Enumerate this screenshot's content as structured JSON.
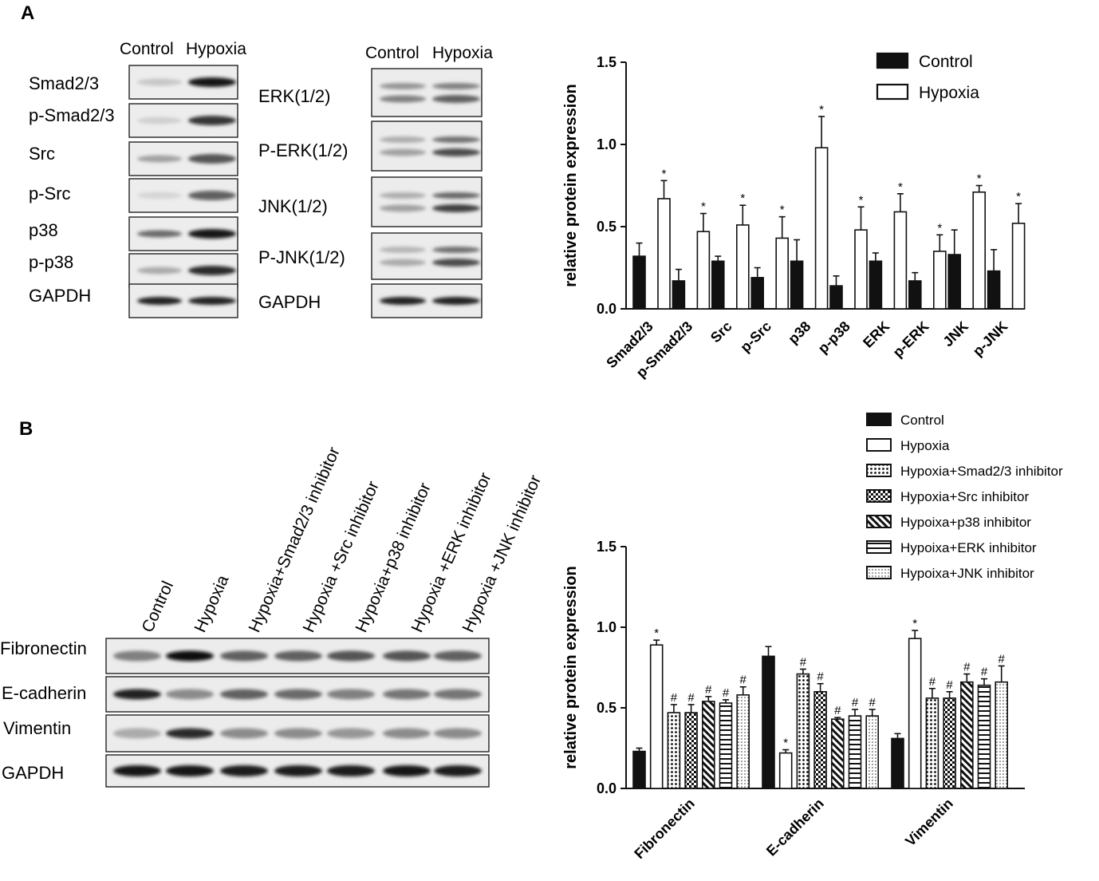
{
  "panel_a": {
    "letter": "A",
    "blot_left": {
      "columns": [
        "Control",
        "Hypoxia"
      ],
      "rows": [
        {
          "label": "Smad2/3",
          "control": 0.12,
          "hypoxia": 0.95,
          "bands": 1
        },
        {
          "label": "p-Smad2/3",
          "control": 0.08,
          "hypoxia": 0.8,
          "bands": 1
        },
        {
          "label": "Src",
          "control": 0.3,
          "hypoxia": 0.65,
          "bands": 1
        },
        {
          "label": "p-Src",
          "control": 0.05,
          "hypoxia": 0.6,
          "bands": 1
        },
        {
          "label": "p38",
          "control": 0.55,
          "hypoxia": 0.95,
          "bands": 1
        },
        {
          "label": "p-p38",
          "control": 0.25,
          "hypoxia": 0.85,
          "bands": 1
        },
        {
          "label": "GAPDH",
          "control": 0.9,
          "hypoxia": 0.9,
          "bands": 1
        }
      ]
    },
    "blot_right": {
      "columns": [
        "Control",
        "Hypoxia"
      ],
      "rows": [
        {
          "label": "ERK(1/2)",
          "control": 0.45,
          "hypoxia": 0.6,
          "bands": 2
        },
        {
          "label": "P-ERK(1/2)",
          "control": 0.3,
          "hypoxia": 0.7,
          "bands": 2
        },
        {
          "label": "JNK(1/2)",
          "control": 0.3,
          "hypoxia": 0.75,
          "bands": 2
        },
        {
          "label": "P-JNK(1/2)",
          "control": 0.25,
          "hypoxia": 0.7,
          "bands": 2
        },
        {
          "label": "GAPDH",
          "control": 0.9,
          "hypoxia": 0.9,
          "bands": 1
        }
      ]
    }
  },
  "panel_b": {
    "letter": "B",
    "blot": {
      "columns": [
        "Control",
        "Hypoxia",
        "Hypoxia+Smad2/3 inhibitor",
        "Hypoxia +Src inhibitor",
        "Hypoxia+p38 inhibitor",
        "Hypoxia +ERK inhibitor",
        "Hypoxia +JNK inhibitor"
      ],
      "rows": [
        {
          "label": "Fibronectin",
          "intensities": [
            0.45,
            0.98,
            0.6,
            0.6,
            0.65,
            0.65,
            0.6
          ]
        },
        {
          "label": "E-cadherin",
          "intensities": [
            0.9,
            0.4,
            0.6,
            0.55,
            0.45,
            0.5,
            0.5
          ]
        },
        {
          "label": "Vimentin",
          "intensities": [
            0.25,
            0.85,
            0.4,
            0.4,
            0.35,
            0.4,
            0.4
          ]
        },
        {
          "label": "GAPDH",
          "intensities": [
            0.95,
            0.95,
            0.92,
            0.92,
            0.92,
            0.95,
            0.92
          ]
        }
      ]
    }
  },
  "chart_data": [
    {
      "type": "bar",
      "title": "",
      "xlabel": "",
      "ylabel": "relative protein expression",
      "ylim": [
        0,
        1.5
      ],
      "yticks": [
        "0.0",
        "0.5",
        "1.0",
        "1.5"
      ],
      "categories": [
        "Smad2/3",
        "p-Smad2/3",
        "Src",
        "p-Src",
        "p38",
        "p-p38",
        "ERK",
        "p-ERK",
        "JNK",
        "p-JNK"
      ],
      "series": [
        {
          "name": "Control",
          "fill": "solid",
          "values": [
            0.32,
            0.17,
            0.29,
            0.19,
            0.29,
            0.14,
            0.29,
            0.17,
            0.33,
            0.23
          ],
          "errors": [
            0.08,
            0.07,
            0.03,
            0.06,
            0.13,
            0.06,
            0.05,
            0.05,
            0.15,
            0.13
          ]
        },
        {
          "name": "Hypoxia",
          "fill": "hollow",
          "values": [
            0.67,
            0.47,
            0.51,
            0.43,
            0.98,
            0.48,
            0.59,
            0.35,
            0.71,
            0.52
          ],
          "errors": [
            0.11,
            0.11,
            0.12,
            0.13,
            0.19,
            0.14,
            0.11,
            0.1,
            0.04,
            0.12
          ],
          "markers": [
            "*",
            "*",
            "*",
            "*",
            "*",
            "*",
            "*",
            "*",
            "*",
            "*"
          ]
        }
      ],
      "legend": "top-right"
    },
    {
      "type": "bar",
      "title": "",
      "xlabel": "",
      "ylabel": "relative protein expression",
      "ylim": [
        0,
        1.5
      ],
      "yticks": [
        "0.0",
        "0.5",
        "1.0",
        "1.5"
      ],
      "categories": [
        "Fibronectin",
        "E-cadherin",
        "Vimentin"
      ],
      "series": [
        {
          "name": "Control",
          "fill": "solid",
          "values": [
            0.23,
            0.82,
            0.31
          ],
          "errors": [
            0.02,
            0.06,
            0.03
          ],
          "markers": [
            "",
            "",
            ""
          ]
        },
        {
          "name": "Hypoxia",
          "fill": "hollow",
          "values": [
            0.89,
            0.22,
            0.93
          ],
          "errors": [
            0.03,
            0.02,
            0.05
          ],
          "markers": [
            "*",
            "*",
            "*"
          ]
        },
        {
          "name": "Hypoxia+Smad2/3 inhibitor",
          "fill": "dots",
          "values": [
            0.47,
            0.71,
            0.56
          ],
          "errors": [
            0.05,
            0.03,
            0.06
          ],
          "markers": [
            "#",
            "#",
            "#"
          ]
        },
        {
          "name": "Hypoxia+Src inhibitor",
          "fill": "check",
          "values": [
            0.47,
            0.6,
            0.56
          ],
          "errors": [
            0.05,
            0.05,
            0.04
          ],
          "markers": [
            "#",
            "#",
            "#"
          ]
        },
        {
          "name": "Hypoixa+p38 inhibitor",
          "fill": "diag",
          "values": [
            0.54,
            0.43,
            0.66
          ],
          "errors": [
            0.03,
            0.01,
            0.05
          ],
          "markers": [
            "#",
            "#",
            "#"
          ]
        },
        {
          "name": "Hypoixa+ERK inhibitor",
          "fill": "horiz",
          "values": [
            0.53,
            0.45,
            0.64
          ],
          "errors": [
            0.02,
            0.04,
            0.04
          ],
          "markers": [
            "#",
            "#",
            "#"
          ]
        },
        {
          "name": "Hypoixa+JNK inhibitor",
          "fill": "fine",
          "values": [
            0.58,
            0.45,
            0.66
          ],
          "errors": [
            0.05,
            0.04,
            0.1
          ],
          "markers": [
            "#",
            "#",
            "#"
          ]
        }
      ],
      "legend": "top-right"
    }
  ]
}
